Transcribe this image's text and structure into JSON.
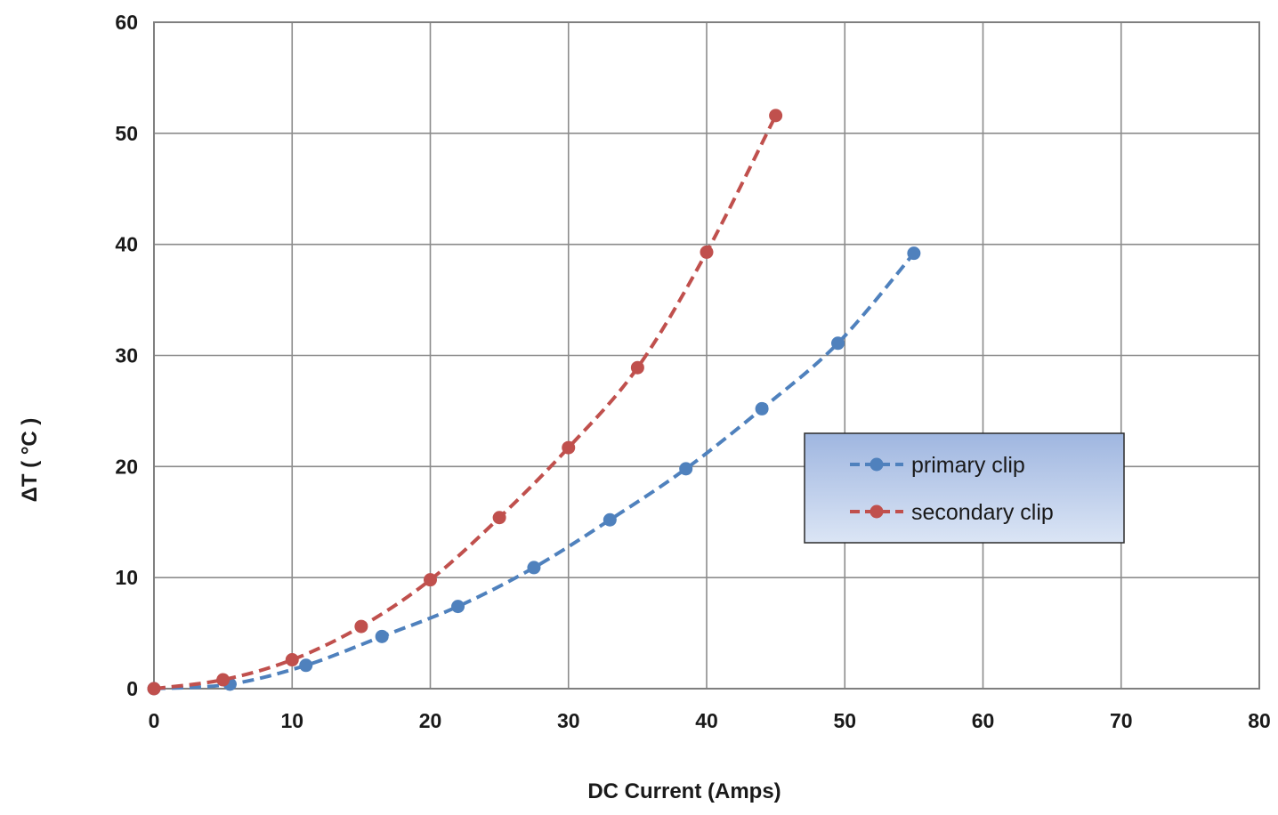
{
  "chart_data": {
    "type": "line",
    "title": "",
    "xlabel": "DC Current (Amps)",
    "ylabel": "ΔT ( °C )",
    "xlim": [
      0,
      80
    ],
    "ylim": [
      0,
      60
    ],
    "x_ticks": [
      0,
      10,
      20,
      30,
      40,
      50,
      60,
      70,
      80
    ],
    "y_ticks": [
      0,
      10,
      20,
      30,
      40,
      50,
      60
    ],
    "x_tick_labels": [
      "0",
      "10",
      "20",
      "30",
      "40",
      "50",
      "60",
      "70",
      "80"
    ],
    "y_tick_labels": [
      "0",
      "10",
      "20",
      "30",
      "40",
      "50",
      "60"
    ],
    "grid": true,
    "legend_position": "right",
    "line_style": "dashed",
    "series": [
      {
        "name": "primary clip",
        "color": "#4f81bd",
        "x": [
          0,
          5.5,
          11,
          16.5,
          22,
          27.5,
          33,
          38.5,
          44,
          49.5,
          55
        ],
        "y": [
          0,
          0.4,
          2.1,
          4.7,
          7.4,
          10.9,
          15.2,
          19.8,
          25.2,
          31.1,
          39.2
        ]
      },
      {
        "name": "secondary clip",
        "color": "#c0504d",
        "x": [
          0,
          5,
          10,
          15,
          20,
          25,
          30,
          35,
          40,
          45
        ],
        "y": [
          0,
          0.8,
          2.6,
          5.6,
          9.8,
          15.4,
          21.7,
          28.9,
          39.3,
          51.6
        ]
      }
    ]
  }
}
